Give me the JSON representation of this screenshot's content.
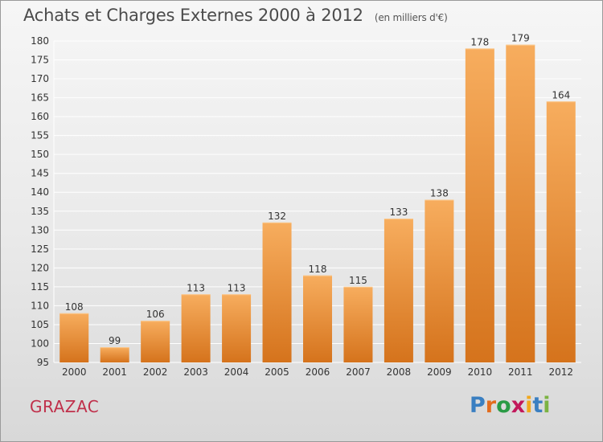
{
  "header": {
    "title": "Achats et Charges Externes 2000 à 2012",
    "unit": "(en milliers d'€)"
  },
  "footer": {
    "commune": "GRAZAC",
    "brand": "Proxiti",
    "brand_colors": [
      "#3a7fc1",
      "#e36c1e",
      "#2a9b45",
      "#c2185b",
      "#f2a81d",
      "#3a7fc1",
      "#7cb342"
    ]
  },
  "colors": {
    "bar_light": "#f7ad5e",
    "bar_dark": "#d5731c",
    "grid": "#ffffff",
    "axis_text": "#333333"
  },
  "chart_data": {
    "type": "bar",
    "categories": [
      "2000",
      "2001",
      "2002",
      "2003",
      "2004",
      "2005",
      "2006",
      "2007",
      "2008",
      "2009",
      "2010",
      "2011",
      "2012"
    ],
    "values": [
      108,
      99,
      106,
      113,
      113,
      132,
      118,
      115,
      133,
      138,
      178,
      179,
      164
    ],
    "ylim": [
      95,
      180
    ],
    "yticks": [
      95,
      100,
      105,
      110,
      115,
      120,
      125,
      130,
      135,
      140,
      145,
      150,
      155,
      160,
      165,
      170,
      175,
      180
    ],
    "grid": true
  }
}
